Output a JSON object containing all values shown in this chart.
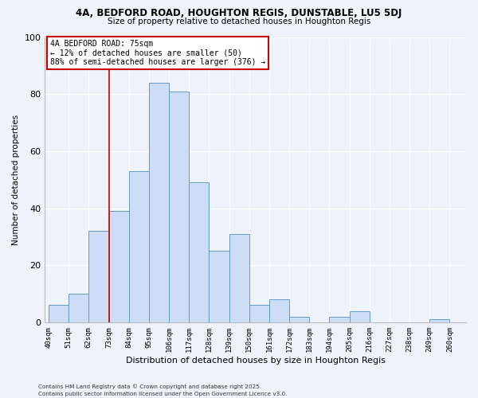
{
  "title1": "4A, BEDFORD ROAD, HOUGHTON REGIS, DUNSTABLE, LU5 5DJ",
  "title2": "Size of property relative to detached houses in Houghton Regis",
  "xlabel": "Distribution of detached houses by size in Houghton Regis",
  "ylabel": "Number of detached properties",
  "bin_labels": [
    "40sqm",
    "51sqm",
    "62sqm",
    "73sqm",
    "84sqm",
    "95sqm",
    "106sqm",
    "117sqm",
    "128sqm",
    "139sqm",
    "150sqm",
    "161sqm",
    "172sqm",
    "183sqm",
    "194sqm",
    "205sqm",
    "216sqm",
    "227sqm",
    "238sqm",
    "249sqm",
    "260sqm"
  ],
  "bin_edges": [
    40,
    51,
    62,
    73,
    84,
    95,
    106,
    117,
    128,
    139,
    150,
    161,
    172,
    183,
    194,
    205,
    216,
    227,
    238,
    249,
    260
  ],
  "bar_heights": [
    6,
    10,
    32,
    39,
    53,
    84,
    81,
    49,
    25,
    31,
    6,
    8,
    2,
    0,
    2,
    4,
    0,
    0,
    0,
    1
  ],
  "bar_color": "#ccddf5",
  "bar_edge_color": "#6699cc",
  "reference_line_x": 73,
  "annotation_line1": "4A BEDFORD ROAD: 75sqm",
  "annotation_line2": "← 12% of detached houses are smaller (50)",
  "annotation_line3": "88% of semi-detached houses are larger (376) →",
  "annotation_box_color": "#ffffff",
  "annotation_box_edge": "#cc0000",
  "ylim": [
    0,
    100
  ],
  "yticks": [
    0,
    20,
    40,
    60,
    80,
    100
  ],
  "footnote1": "Contains HM Land Registry data © Crown copyright and database right 2025.",
  "footnote2": "Contains public sector information licensed under the Open Government Licence v3.0.",
  "background_color": "#eef2fa"
}
